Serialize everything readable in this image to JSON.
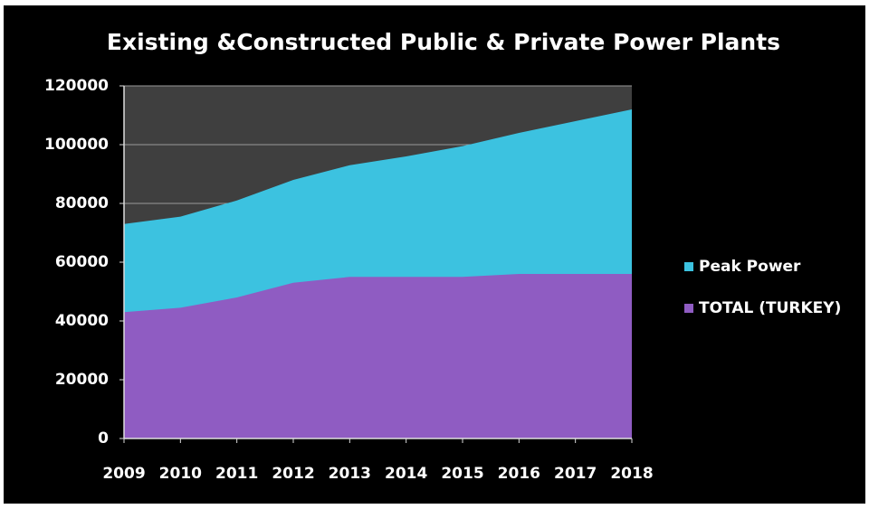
{
  "chart_data": {
    "type": "area",
    "title": "Existing &Constructed Public & Private Power Plants",
    "categories": [
      "2009",
      "2010",
      "2011",
      "2012",
      "2013",
      "2014",
      "2015",
      "2016",
      "2017",
      "2018"
    ],
    "series": [
      {
        "name": "Peak Power",
        "color": "#3cc2e0",
        "values": [
          73000,
          75500,
          81000,
          88000,
          93000,
          96000,
          99500,
          104000,
          108000,
          112000
        ]
      },
      {
        "name": "TOTAL (TURKEY)",
        "color": "#8f5cc2",
        "values": [
          43000,
          44500,
          48000,
          53000,
          55000,
          55000,
          55000,
          56000,
          56000,
          56000
        ]
      }
    ],
    "ylim": [
      0,
      120000
    ],
    "yticks": [
      0,
      20000,
      40000,
      60000,
      80000,
      100000,
      120000
    ],
    "grid": true,
    "legend": "right"
  }
}
